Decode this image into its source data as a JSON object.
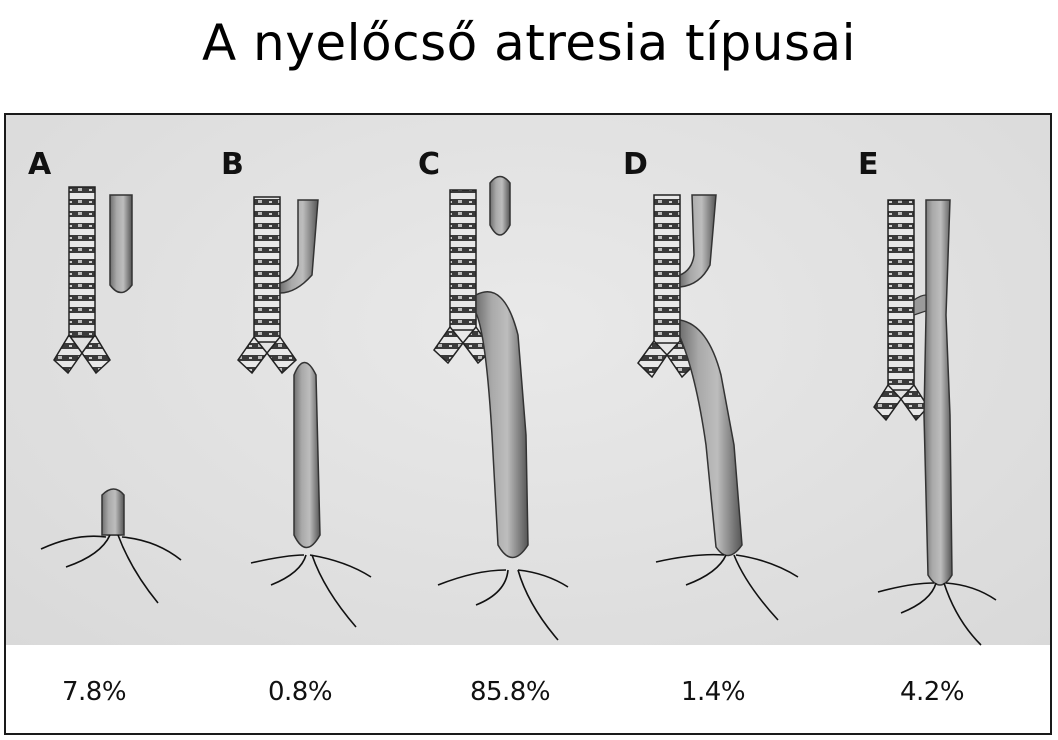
{
  "title": "A nyelőcső atresia típusai",
  "types": [
    {
      "letter": "A",
      "percent": "7.8%"
    },
    {
      "letter": "B",
      "percent": "0.8%"
    },
    {
      "letter": "C",
      "percent": "85.8%"
    },
    {
      "letter": "D",
      "percent": "1.4%"
    },
    {
      "letter": "E",
      "percent": "4.2%"
    }
  ]
}
